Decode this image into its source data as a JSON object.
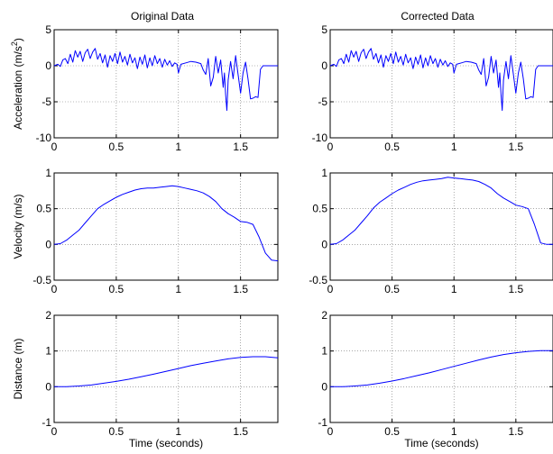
{
  "figure": {
    "column_titles": [
      "Original Data",
      "Corrected Data"
    ],
    "line_color": "#0000ff"
  },
  "chart_data": [
    {
      "type": "line",
      "panel": "original-acceleration",
      "title": "Original Data",
      "xlabel": "",
      "ylabel": "Acceleration (m/s2)",
      "xlim": [
        0,
        1.8
      ],
      "ylim": [
        -10,
        5
      ],
      "xticks": [
        0,
        0.5,
        1,
        1.5
      ],
      "xtick_labels": [
        "0",
        "0.5",
        "1",
        "1.5"
      ],
      "yticks": [
        -10,
        -5,
        0,
        5
      ],
      "ytick_labels": [
        "-10",
        "-5",
        "0",
        "5"
      ],
      "grid": true,
      "x": [
        0,
        0.03,
        0.05,
        0.07,
        0.09,
        0.11,
        0.13,
        0.15,
        0.17,
        0.19,
        0.21,
        0.23,
        0.25,
        0.27,
        0.29,
        0.31,
        0.33,
        0.35,
        0.37,
        0.39,
        0.41,
        0.43,
        0.45,
        0.47,
        0.49,
        0.51,
        0.53,
        0.55,
        0.57,
        0.59,
        0.61,
        0.63,
        0.65,
        0.67,
        0.69,
        0.71,
        0.73,
        0.75,
        0.77,
        0.79,
        0.81,
        0.83,
        0.85,
        0.87,
        0.89,
        0.91,
        0.93,
        0.95,
        0.97,
        0.99,
        1.0,
        1.02,
        1.06,
        1.1,
        1.14,
        1.18,
        1.2,
        1.22,
        1.24,
        1.26,
        1.28,
        1.3,
        1.32,
        1.34,
        1.36,
        1.37,
        1.38,
        1.39,
        1.4,
        1.42,
        1.44,
        1.46,
        1.48,
        1.5,
        1.52,
        1.54,
        1.56,
        1.58,
        1.6,
        1.62,
        1.64,
        1.66,
        1.68,
        1.72,
        1.76,
        1.8
      ],
      "y": [
        0,
        0.2,
        -0.1,
        0.8,
        1.0,
        0.3,
        1.6,
        0.5,
        2.1,
        1.2,
        2.0,
        0.6,
        1.8,
        2.3,
        1.0,
        1.9,
        2.4,
        0.9,
        1.7,
        0.4,
        1.5,
        -0.2,
        1.4,
        0.6,
        1.7,
        0.3,
        1.9,
        0.5,
        1.3,
        0.1,
        1.6,
        0.4,
        1.1,
        -0.4,
        1.2,
        0.2,
        1.5,
        -0.3,
        1.1,
        0.0,
        1.4,
        0.3,
        1.0,
        -0.2,
        0.9,
        0.1,
        0.7,
        -0.1,
        0.4,
        0.2,
        -1.0,
        0.2,
        0.4,
        0.6,
        0.5,
        0.3,
        -0.6,
        -1.2,
        1.0,
        -2.8,
        -1.6,
        1.3,
        -1.0,
        0.8,
        -3.0,
        -1.0,
        -4.0,
        -6.2,
        -2.0,
        0.6,
        -1.8,
        1.4,
        -1.2,
        -3.8,
        -1.0,
        0.5,
        -1.8,
        -4.6,
        -4.5,
        -4.3,
        -4.4,
        -0.5,
        0,
        0,
        0,
        0
      ]
    },
    {
      "type": "line",
      "panel": "corrected-acceleration",
      "title": "Corrected Data",
      "xlabel": "",
      "ylabel": "",
      "xlim": [
        0,
        1.8
      ],
      "ylim": [
        -10,
        5
      ],
      "xticks": [
        0,
        0.5,
        1,
        1.5
      ],
      "xtick_labels": [
        "0",
        "0.5",
        "1",
        "1.5"
      ],
      "yticks": [
        -10,
        -5,
        0,
        5
      ],
      "ytick_labels": [
        "-10",
        "-5",
        "0",
        "5"
      ],
      "grid": true,
      "x": [
        0,
        0.03,
        0.05,
        0.07,
        0.09,
        0.11,
        0.13,
        0.15,
        0.17,
        0.19,
        0.21,
        0.23,
        0.25,
        0.27,
        0.29,
        0.31,
        0.33,
        0.35,
        0.37,
        0.39,
        0.41,
        0.43,
        0.45,
        0.47,
        0.49,
        0.51,
        0.53,
        0.55,
        0.57,
        0.59,
        0.61,
        0.63,
        0.65,
        0.67,
        0.69,
        0.71,
        0.73,
        0.75,
        0.77,
        0.79,
        0.81,
        0.83,
        0.85,
        0.87,
        0.89,
        0.91,
        0.93,
        0.95,
        0.97,
        0.99,
        1.0,
        1.02,
        1.06,
        1.1,
        1.14,
        1.18,
        1.2,
        1.22,
        1.24,
        1.26,
        1.28,
        1.3,
        1.32,
        1.34,
        1.36,
        1.37,
        1.38,
        1.39,
        1.4,
        1.42,
        1.44,
        1.46,
        1.48,
        1.5,
        1.52,
        1.54,
        1.56,
        1.58,
        1.6,
        1.62,
        1.64,
        1.66,
        1.68,
        1.72,
        1.76,
        1.8
      ],
      "y": [
        0,
        0.2,
        -0.1,
        0.8,
        1.0,
        0.3,
        1.6,
        0.5,
        2.1,
        1.2,
        2.0,
        0.6,
        1.8,
        2.3,
        1.0,
        1.9,
        2.4,
        0.9,
        1.7,
        0.4,
        1.5,
        -0.2,
        1.4,
        0.6,
        1.7,
        0.3,
        1.9,
        0.5,
        1.3,
        0.1,
        1.6,
        0.4,
        1.1,
        -0.4,
        1.2,
        0.2,
        1.5,
        -0.3,
        1.1,
        0.0,
        1.4,
        0.3,
        1.0,
        -0.2,
        0.9,
        0.1,
        0.7,
        -0.1,
        0.4,
        0.2,
        -1.0,
        0.2,
        0.4,
        0.6,
        0.5,
        0.3,
        -0.6,
        -1.2,
        1.0,
        -2.8,
        -1.6,
        1.3,
        -1.0,
        0.8,
        -3.0,
        -1.0,
        -4.0,
        -6.2,
        -2.0,
        0.6,
        -1.8,
        1.4,
        -1.2,
        -3.8,
        -1.0,
        0.5,
        -1.8,
        -4.6,
        -4.5,
        -4.3,
        -4.4,
        -0.5,
        0,
        0,
        0,
        0
      ]
    },
    {
      "type": "line",
      "panel": "original-velocity",
      "title": "",
      "xlabel": "",
      "ylabel": "Velocity (m/s)",
      "xlim": [
        0,
        1.8
      ],
      "ylim": [
        -0.5,
        1
      ],
      "xticks": [
        0,
        0.5,
        1,
        1.5
      ],
      "xtick_labels": [
        "0",
        "0.5",
        "1",
        "1.5"
      ],
      "yticks": [
        -0.5,
        0,
        0.5,
        1
      ],
      "ytick_labels": [
        "-0.5",
        "0",
        "0.5",
        "1"
      ],
      "grid": true,
      "x": [
        0,
        0.05,
        0.1,
        0.15,
        0.2,
        0.25,
        0.3,
        0.35,
        0.4,
        0.45,
        0.5,
        0.55,
        0.6,
        0.65,
        0.7,
        0.75,
        0.8,
        0.85,
        0.9,
        0.95,
        1.0,
        1.05,
        1.1,
        1.15,
        1.2,
        1.25,
        1.3,
        1.35,
        1.4,
        1.45,
        1.5,
        1.55,
        1.6,
        1.65,
        1.7,
        1.75,
        1.8
      ],
      "y": [
        0.0,
        0.01,
        0.06,
        0.13,
        0.2,
        0.3,
        0.4,
        0.5,
        0.56,
        0.61,
        0.66,
        0.7,
        0.73,
        0.76,
        0.78,
        0.79,
        0.79,
        0.8,
        0.81,
        0.82,
        0.81,
        0.79,
        0.77,
        0.75,
        0.72,
        0.67,
        0.6,
        0.5,
        0.43,
        0.38,
        0.32,
        0.31,
        0.28,
        0.1,
        -0.12,
        -0.22,
        -0.23
      ]
    },
    {
      "type": "line",
      "panel": "corrected-velocity",
      "title": "",
      "xlabel": "",
      "ylabel": "",
      "xlim": [
        0,
        1.8
      ],
      "ylim": [
        -0.5,
        1
      ],
      "xticks": [
        0,
        0.5,
        1,
        1.5
      ],
      "xtick_labels": [
        "0",
        "0.5",
        "1",
        "1.5"
      ],
      "yticks": [
        -0.5,
        0,
        0.5,
        1
      ],
      "ytick_labels": [
        "-0.5",
        "0",
        "0.5",
        "1"
      ],
      "grid": true,
      "x": [
        0,
        0.05,
        0.1,
        0.15,
        0.2,
        0.25,
        0.3,
        0.35,
        0.4,
        0.45,
        0.5,
        0.55,
        0.6,
        0.65,
        0.7,
        0.75,
        0.8,
        0.85,
        0.9,
        0.95,
        1.0,
        1.05,
        1.1,
        1.15,
        1.2,
        1.25,
        1.3,
        1.35,
        1.4,
        1.45,
        1.5,
        1.55,
        1.6,
        1.65,
        1.7,
        1.75,
        1.8
      ],
      "y": [
        0.0,
        0.01,
        0.06,
        0.13,
        0.2,
        0.3,
        0.4,
        0.51,
        0.59,
        0.65,
        0.71,
        0.76,
        0.8,
        0.84,
        0.87,
        0.89,
        0.9,
        0.91,
        0.92,
        0.94,
        0.93,
        0.92,
        0.91,
        0.9,
        0.88,
        0.84,
        0.79,
        0.71,
        0.65,
        0.6,
        0.55,
        0.53,
        0.5,
        0.28,
        0.02,
        0.0,
        0.0
      ]
    },
    {
      "type": "line",
      "panel": "original-distance",
      "title": "",
      "xlabel": "Time (seconds)",
      "ylabel": "Distance (m)",
      "xlim": [
        0,
        1.8
      ],
      "ylim": [
        -1,
        2
      ],
      "xticks": [
        0,
        0.5,
        1,
        1.5
      ],
      "xtick_labels": [
        "0",
        "0.5",
        "1",
        "1.5"
      ],
      "yticks": [
        -1,
        0,
        1,
        2
      ],
      "ytick_labels": [
        "-1",
        "0",
        "1",
        "2"
      ],
      "grid": true,
      "x": [
        0,
        0.1,
        0.2,
        0.3,
        0.4,
        0.5,
        0.6,
        0.7,
        0.8,
        0.9,
        1.0,
        1.1,
        1.2,
        1.3,
        1.4,
        1.5,
        1.6,
        1.7,
        1.8
      ],
      "y": [
        0.0,
        0.0,
        0.02,
        0.05,
        0.1,
        0.15,
        0.21,
        0.28,
        0.35,
        0.43,
        0.51,
        0.59,
        0.66,
        0.72,
        0.78,
        0.82,
        0.84,
        0.84,
        0.81
      ]
    },
    {
      "type": "line",
      "panel": "corrected-distance",
      "title": "",
      "xlabel": "Time (seconds)",
      "ylabel": "",
      "xlim": [
        0,
        1.8
      ],
      "ylim": [
        -1,
        2
      ],
      "xticks": [
        0,
        0.5,
        1,
        1.5
      ],
      "xtick_labels": [
        "0",
        "0.5",
        "1",
        "1.5"
      ],
      "yticks": [
        -1,
        0,
        1,
        2
      ],
      "ytick_labels": [
        "-1",
        "0",
        "1",
        "2"
      ],
      "grid": true,
      "x": [
        0,
        0.1,
        0.2,
        0.3,
        0.4,
        0.5,
        0.6,
        0.7,
        0.8,
        0.9,
        1.0,
        1.1,
        1.2,
        1.3,
        1.4,
        1.5,
        1.6,
        1.7,
        1.8
      ],
      "y": [
        0.0,
        0.0,
        0.02,
        0.05,
        0.1,
        0.16,
        0.23,
        0.31,
        0.39,
        0.48,
        0.57,
        0.66,
        0.75,
        0.83,
        0.9,
        0.95,
        0.99,
        1.01,
        1.01
      ]
    }
  ]
}
